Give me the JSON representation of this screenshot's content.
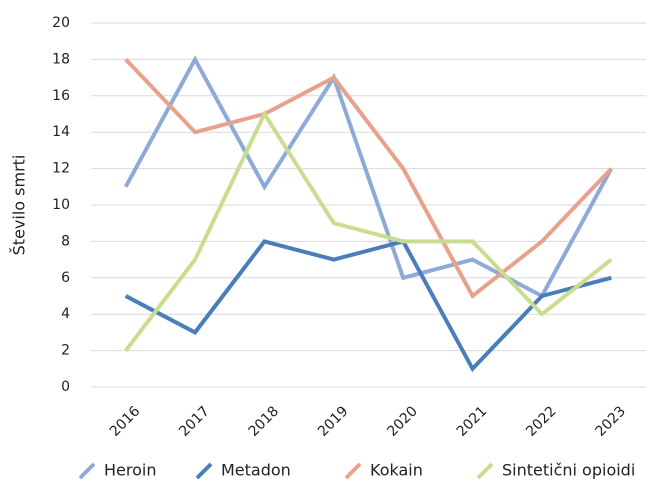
{
  "chart_data": {
    "type": "line",
    "y_label": "Število smrti",
    "categories": [
      "2016",
      "2017",
      "2018",
      "2019",
      "2020",
      "2021",
      "2022",
      "2023"
    ],
    "series": [
      {
        "name": "Heroin",
        "color": "#8eaad8",
        "values": [
          11,
          18,
          11,
          17,
          6,
          7,
          5,
          12
        ]
      },
      {
        "name": "Metadon",
        "color": "#4a7ebb",
        "values": [
          5,
          3,
          8,
          7,
          8,
          1,
          5,
          6
        ]
      },
      {
        "name": "Kokain",
        "color": "#e8a28c",
        "values": [
          18,
          14,
          15,
          17,
          12,
          5,
          8,
          12
        ]
      },
      {
        "name": "Sintetični opioidi",
        "color": "#c8de8e",
        "values": [
          2,
          7,
          15,
          9,
          8,
          8,
          4,
          7
        ]
      }
    ],
    "ylim": [
      0,
      20
    ],
    "yticks": [
      0,
      2,
      4,
      6,
      8,
      10,
      12,
      14,
      16,
      18,
      20
    ],
    "grid": true
  }
}
